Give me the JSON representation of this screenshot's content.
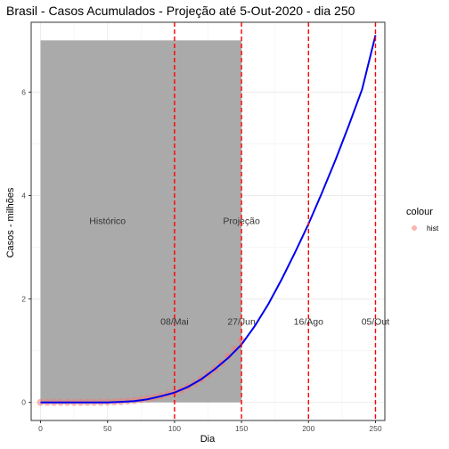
{
  "chart_data": {
    "type": "line",
    "title": "Brasil - Casos Acumulados - Projeção até 5-Out-2020 - dia 250",
    "xlabel": "Dia",
    "ylabel": "Casos - milhões",
    "xlim": [
      -7,
      257
    ],
    "ylim": [
      -0.35,
      7.35
    ],
    "x_ticks": [
      0,
      50,
      100,
      150,
      200,
      250
    ],
    "x_tick_labels": [
      "0",
      "50",
      "100",
      "150",
      "200",
      "250"
    ],
    "y_ticks": [
      0,
      2,
      4,
      6
    ],
    "y_tick_labels": [
      "0",
      "2",
      "4",
      "6"
    ],
    "grid": true,
    "shaded_region": {
      "x": [
        0,
        150
      ],
      "y": [
        0,
        7
      ],
      "color": "#aaaaaa"
    },
    "region_labels": [
      {
        "text": "Histórico",
        "x": 50,
        "y": 3.45
      },
      {
        "text": "Projeção",
        "x": 150,
        "y": 3.45
      }
    ],
    "vlines": [
      {
        "x": 100,
        "label": "08/Mai",
        "label_y": 1.5
      },
      {
        "x": 150,
        "label": "27/Jun",
        "label_y": 1.5
      },
      {
        "x": 200,
        "label": "16/Ago",
        "label_y": 1.5
      },
      {
        "x": 250,
        "label": "05/Out",
        "label_y": 1.5
      }
    ],
    "vline_color": "#ff0000",
    "series": [
      {
        "kind": "points",
        "color": "#f8766d",
        "x": [
          0,
          5,
          10,
          15,
          20,
          25,
          30,
          35,
          40,
          45,
          50,
          55,
          60,
          65,
          70,
          75,
          80,
          85,
          90,
          95,
          100,
          105,
          110,
          115,
          120,
          125,
          130,
          135,
          140,
          145,
          150
        ],
        "values": [
          0.0,
          0.0,
          0.0,
          0.0,
          0.0,
          0.0,
          0.0,
          0.001,
          0.002,
          0.003,
          0.006,
          0.01,
          0.016,
          0.025,
          0.037,
          0.053,
          0.073,
          0.096,
          0.123,
          0.155,
          0.19,
          0.24,
          0.3,
          0.37,
          0.45,
          0.54,
          0.64,
          0.76,
          0.89,
          1.03,
          1.2
        ]
      },
      {
        "kind": "line",
        "color": "#0000ee",
        "x": [
          0,
          10,
          20,
          30,
          40,
          50,
          60,
          70,
          80,
          90,
          100,
          110,
          120,
          130,
          140,
          150,
          160,
          170,
          180,
          190,
          200,
          210,
          220,
          230,
          240,
          250
        ],
        "values": [
          0.0,
          0.0,
          0.0,
          0.0,
          0.0,
          0.0,
          0.01,
          0.025,
          0.06,
          0.12,
          0.19,
          0.3,
          0.45,
          0.64,
          0.86,
          1.12,
          1.48,
          1.9,
          2.38,
          2.9,
          3.45,
          4.05,
          4.68,
          5.35,
          6.05,
          7.1
        ]
      }
    ],
    "legend": {
      "title": "colour",
      "entries": [
        {
          "label": "hist",
          "color": "#f8766d"
        }
      ],
      "position": "right"
    }
  }
}
